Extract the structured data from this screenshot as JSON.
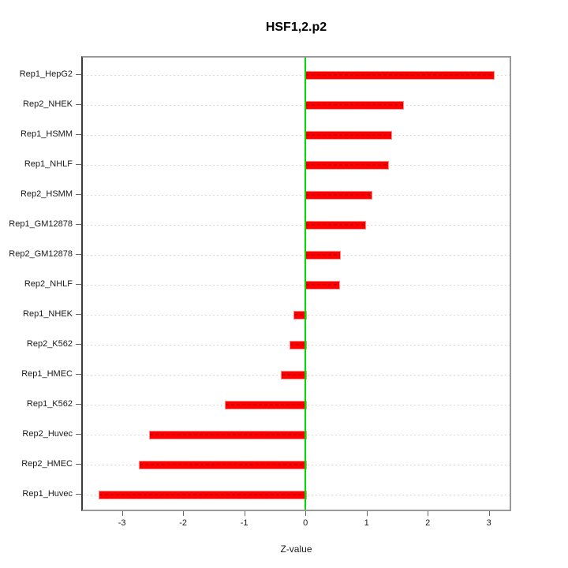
{
  "title": "HSF1,2.p2",
  "chart_data": {
    "type": "bar",
    "orientation": "horizontal",
    "title": "HSF1,2.p2",
    "xlabel": "Z-value",
    "ylabel": "",
    "categories": [
      "Rep1_HepG2",
      "Rep2_NHEK",
      "Rep1_HSMM",
      "Rep1_NHLF",
      "Rep2_HSMM",
      "Rep1_GM12878",
      "Rep2_GM12878",
      "Rep2_NHLF",
      "Rep1_NHEK",
      "Rep2_K562",
      "Rep1_HMEC",
      "Rep1_K562",
      "Rep2_Huvec",
      "Rep2_HMEC",
      "Rep1_Huvec"
    ],
    "values": [
      3.07,
      1.58,
      1.39,
      1.34,
      1.07,
      0.97,
      0.55,
      0.54,
      -0.19,
      -0.26,
      -0.4,
      -1.32,
      -2.55,
      -2.73,
      -3.38
    ],
    "xticks": [
      -3,
      -2,
      -1,
      0,
      1,
      2,
      3
    ],
    "xtick_labels": [
      "-3",
      "-2",
      "-1",
      "0",
      "1",
      "2",
      "3"
    ],
    "xlim": [
      -3.64,
      3.34
    ],
    "grid": true,
    "legend": null,
    "zero_line": 0,
    "colors": {
      "bar": "#fe0000",
      "bar_edge": "#ff8d8d",
      "bar_dash": "#aa0000",
      "grid": "#d9d9d9",
      "zero_line": "#00dc00",
      "box": "#999999",
      "tick": "#666666",
      "text": "#1a1a1a"
    }
  }
}
